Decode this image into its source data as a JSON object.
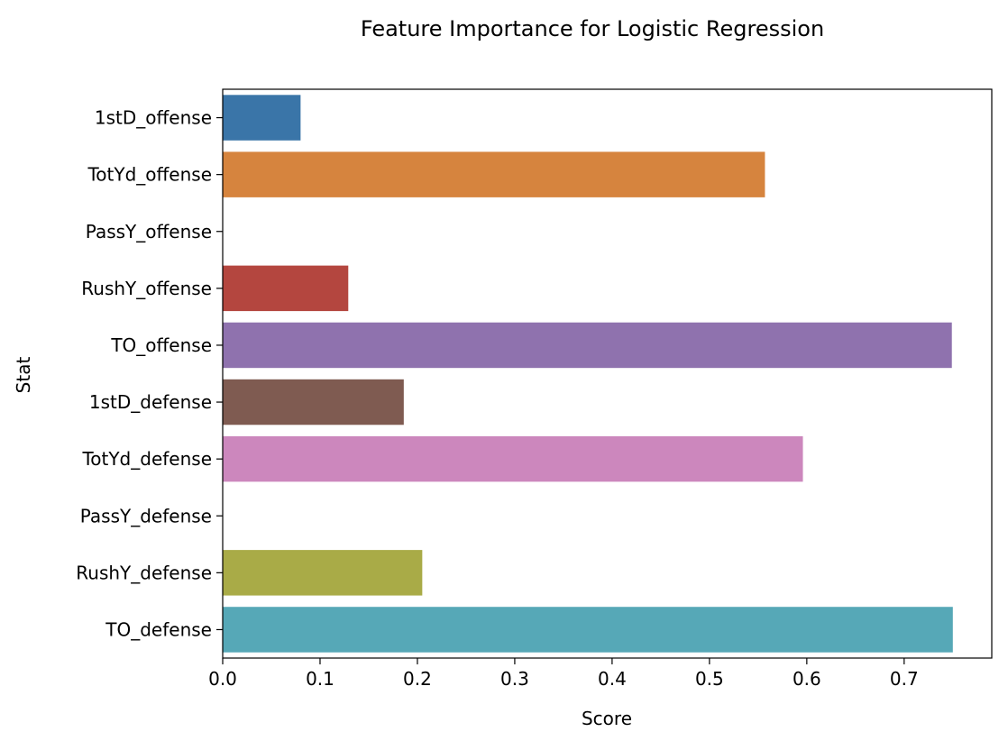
{
  "chart_data": {
    "type": "bar",
    "orientation": "horizontal",
    "title": "Feature Importance for Logistic Regression",
    "xlabel": "Score",
    "ylabel": "Stat",
    "xlim": [
      0,
      0.79
    ],
    "xticks": [
      "0.0",
      "0.1",
      "0.2",
      "0.3",
      "0.4",
      "0.5",
      "0.6",
      "0.7"
    ],
    "grid": false,
    "categories": [
      "1stD_offense",
      "TotYd_offense",
      "PassY_offense",
      "RushY_offense",
      "TO_offense",
      "1stD_defense",
      "TotYd_defense",
      "PassY_defense",
      "RushY_defense",
      "TO_defense"
    ],
    "values": [
      0.08,
      0.557,
      0.0,
      0.129,
      0.749,
      0.186,
      0.596,
      0.0,
      0.205,
      0.75
    ],
    "colors": [
      "#3a75a8",
      "#d6843e",
      "#4a9a4a",
      "#b4463f",
      "#8f72ae",
      "#7f5b51",
      "#cc87bd",
      "#7f7f7f",
      "#a9ab47",
      "#56a8b7"
    ]
  }
}
